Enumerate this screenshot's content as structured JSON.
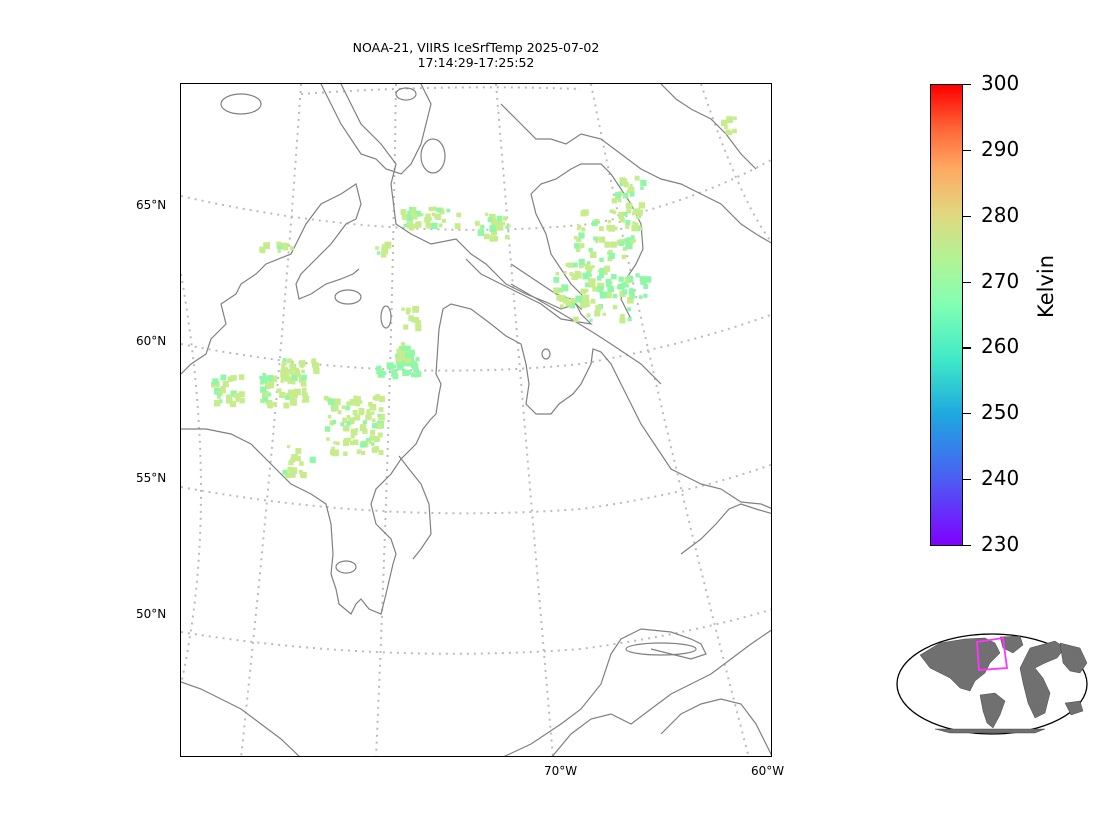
{
  "title": {
    "line1": "NOAA-21, VIIRS IceSrfTemp 2025-07-02",
    "line2": "17:14:29-17:25:52"
  },
  "map": {
    "projection": "lambert-conformal",
    "graticule_style": "dotted",
    "coastline_color": "#808080",
    "lat_labels": [
      "65°N",
      "60°N",
      "55°N",
      "50°N"
    ],
    "lon_labels": [
      "70°W",
      "60°W"
    ]
  },
  "colorbar": {
    "colormap": "rainbow",
    "min": 230,
    "max": 300,
    "ticks": [
      "300",
      "290",
      "280",
      "270",
      "260",
      "250",
      "240",
      "230"
    ],
    "unit": "Kelvin"
  },
  "data_colors": {
    "dominant": "#c6ec8c",
    "cool": "#8ff7a8",
    "cold": "#7ef9b8"
  },
  "inset_globe": {
    "land_color": "#707070",
    "highlight_color": "#ff33ff"
  }
}
